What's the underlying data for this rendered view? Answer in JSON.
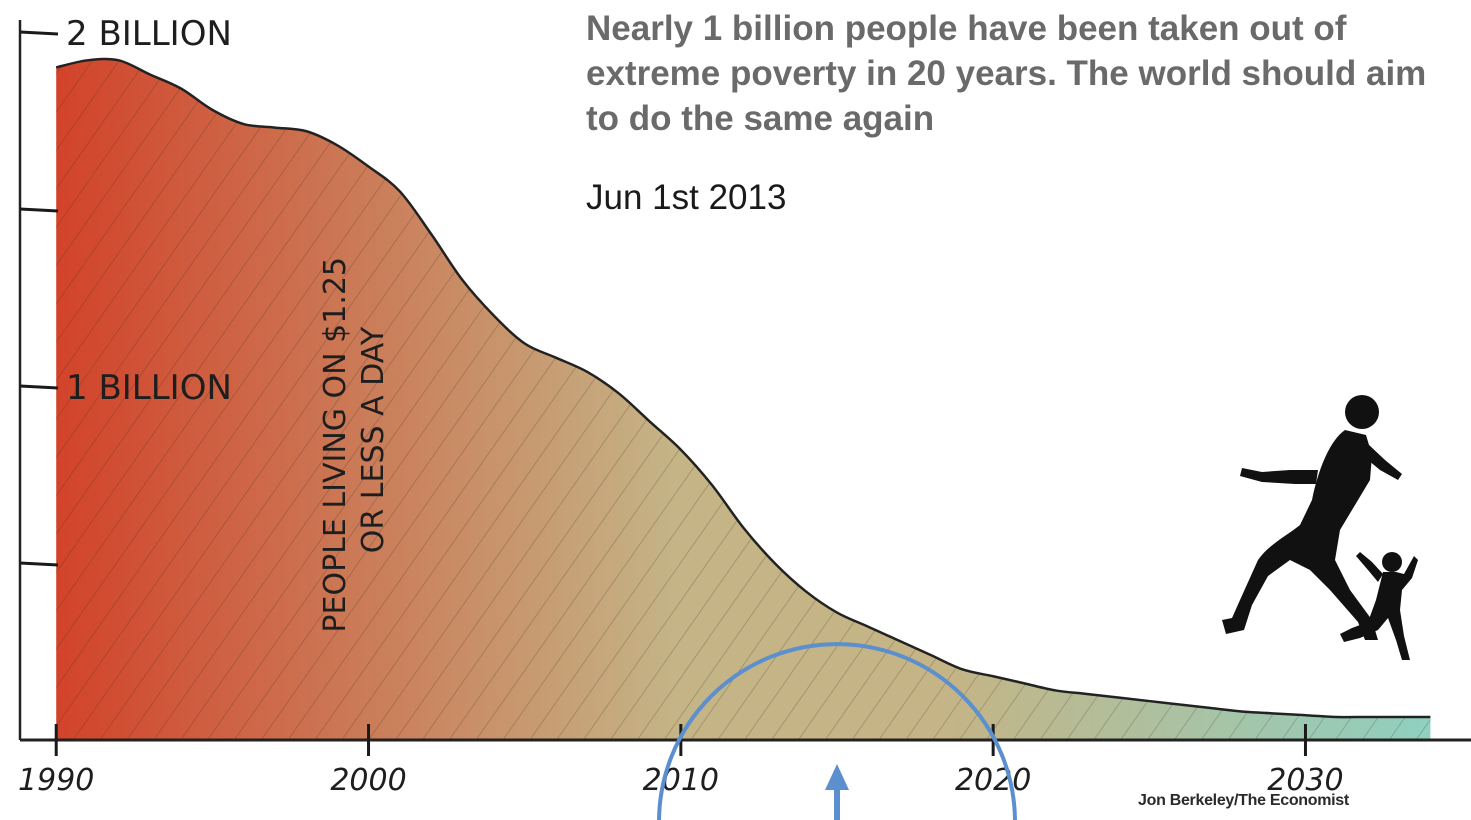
{
  "headline": "Nearly 1 billion people have been taken out of extreme poverty in 20 years. The world should aim to do the same again",
  "date": "Jun 1st 2013",
  "credit": "Jon Berkeley/The Economist",
  "colors": {
    "start": "#d2432a",
    "middle": "#c4b486",
    "end": "#8fd0c0",
    "annotation": "#5b8fce"
  },
  "chart_data": {
    "type": "area",
    "series_label": "PEOPLE LIVING ON $1.25 OR LESS A DAY",
    "x": [
      1990,
      1991,
      1992,
      1993,
      1994,
      1995,
      1996,
      1997,
      1998,
      1999,
      2000,
      2001,
      2002,
      2003,
      2004,
      2005,
      2006,
      2007,
      2008,
      2009,
      2010,
      2011,
      2012,
      2013,
      2014,
      2015,
      2016,
      2017,
      2018,
      2019,
      2020,
      2021,
      2022,
      2023,
      2024,
      2025,
      2026,
      2027,
      2028,
      2029,
      2030,
      2031,
      2032,
      2033,
      2034
    ],
    "y": [
      1.9,
      1.92,
      1.92,
      1.88,
      1.84,
      1.78,
      1.74,
      1.73,
      1.72,
      1.68,
      1.62,
      1.55,
      1.43,
      1.3,
      1.2,
      1.12,
      1.08,
      1.04,
      0.98,
      0.9,
      0.82,
      0.72,
      0.6,
      0.5,
      0.42,
      0.36,
      0.32,
      0.28,
      0.24,
      0.2,
      0.18,
      0.16,
      0.14,
      0.13,
      0.12,
      0.11,
      0.1,
      0.09,
      0.08,
      0.075,
      0.07,
      0.065,
      0.065,
      0.065,
      0.065
    ],
    "xticks": [
      1990,
      2000,
      2010,
      2020,
      2030
    ],
    "xtick_labels": [
      "1990",
      "2000",
      "2010",
      "2020",
      "2030"
    ],
    "ytick_values": [
      2,
      1.5,
      1,
      0.5
    ],
    "ytick_labels": [
      "2 BILLION",
      "",
      "1 BILLION",
      ""
    ],
    "xlim": [
      1988.2,
      2035.3
    ],
    "ylim": [
      0,
      2
    ],
    "highlight_year": 2015
  }
}
